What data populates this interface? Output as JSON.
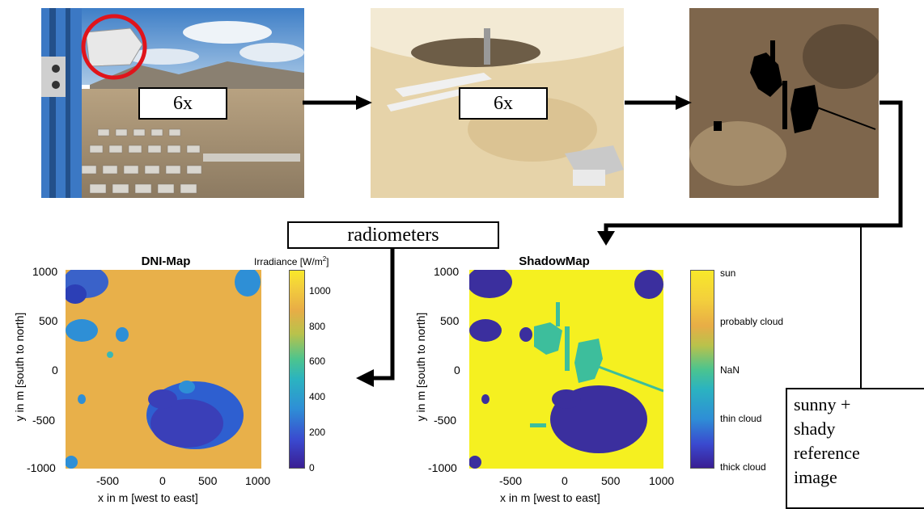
{
  "flow": {
    "box1_label": "6x",
    "box2_label": "6x",
    "radiometers_label": "radiometers",
    "reference_label_lines": [
      "sunny +",
      "shady",
      "reference",
      "image"
    ]
  },
  "dni_map": {
    "title": "DNI-Map",
    "colorbar_title": "Irradiance [W/m",
    "colorbar_title_sup": "2",
    "colorbar_title_end": "]",
    "colorbar_ticks": [
      "0",
      "200",
      "400",
      "600",
      "800",
      "1000"
    ],
    "xlabel": "x in m [west to east]",
    "ylabel": "y in m [south to north]",
    "xticks": [
      "-500",
      "0",
      "500",
      "1000"
    ],
    "yticks": [
      "1000",
      "500",
      "0",
      "-500",
      "-1000"
    ]
  },
  "shadow_map": {
    "title": "ShadowMap",
    "colorbar_ticks": [
      "sun",
      "probably cloud",
      "NaN",
      "thin cloud",
      "thick cloud"
    ],
    "xlabel": "x in m [west to east]",
    "ylabel": "y in m [south to north]",
    "xticks": [
      "-500",
      "0",
      "500",
      "1000"
    ],
    "yticks": [
      "1000",
      "500",
      "0",
      "-500",
      "-1000"
    ]
  },
  "colors": {
    "dni_background": "#E8B04A",
    "dni_cloud_dark": "#3A3FB8",
    "dni_cloud_mid": "#2E8FD6",
    "shadow_sun": "#F5F020",
    "shadow_thick": "#3B2F9E",
    "shadow_nan": "#3DBE9C"
  }
}
